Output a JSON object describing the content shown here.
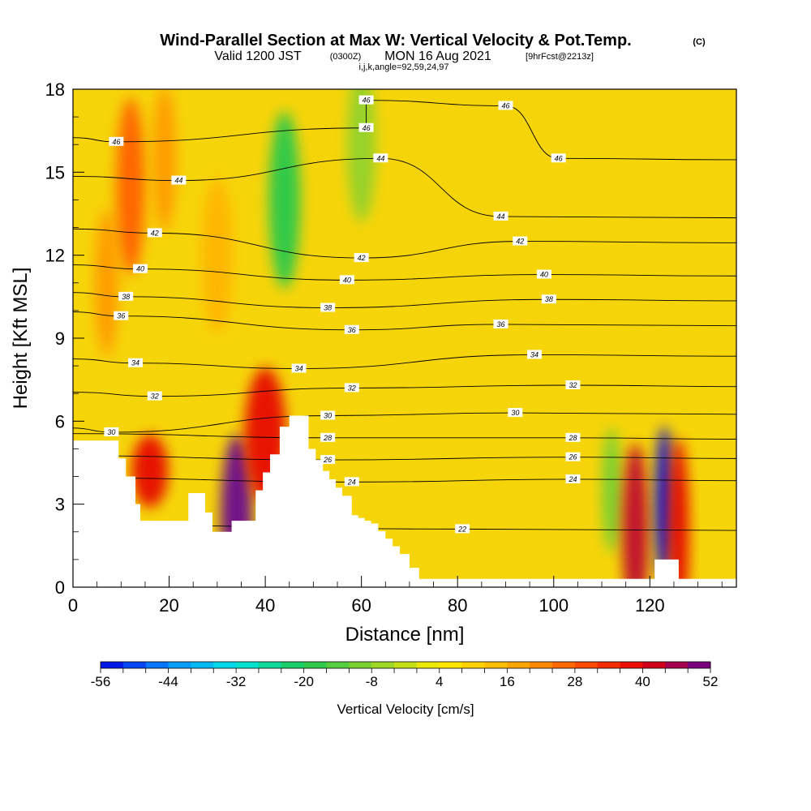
{
  "title": "Wind-Parallel Section at Max W: Vertical Velocity & Pot.Temp.",
  "title_mark": "(C)",
  "subtitle_valid": "Valid 1200 JST",
  "subtitle_utc": "(0300Z)",
  "subtitle_date": "MON 16 Aug 2021",
  "subtitle_fcst": "[9hrFcst@2213z]",
  "subtitle_indices": "i,j,k,angle=92,59,24,97",
  "chart_data": {
    "type": "heatmap",
    "xlabel": "Distance [nm]",
    "ylabel": "Height [Kft MSL]",
    "xlim": [
      0,
      138
    ],
    "ylim": [
      0,
      18
    ],
    "x_ticks": [
      0,
      20,
      40,
      60,
      80,
      100,
      120
    ],
    "y_ticks": [
      0,
      3,
      6,
      9,
      12,
      15,
      18
    ],
    "colorbar": {
      "label": "Vertical Velocity [cm/s]",
      "min": -56,
      "max": 52,
      "step": 4,
      "tick_labels": [
        -56,
        -44,
        -32,
        -20,
        -8,
        4,
        16,
        28,
        40,
        52
      ]
    },
    "terrain_kft": [
      [
        0,
        5.3
      ],
      [
        8,
        5.3
      ],
      [
        11,
        4.0
      ],
      [
        13,
        3.0
      ],
      [
        14,
        2.4
      ],
      [
        22,
        2.4
      ],
      [
        24,
        3.4
      ],
      [
        26,
        3.4
      ],
      [
        29,
        2.0
      ],
      [
        31,
        2.0
      ],
      [
        33,
        2.4
      ],
      [
        36,
        2.4
      ],
      [
        38,
        3.5
      ],
      [
        41,
        4.8
      ],
      [
        43,
        5.8
      ],
      [
        45,
        6.2
      ],
      [
        47,
        6.2
      ],
      [
        49,
        5.0
      ],
      [
        52,
        4.2
      ],
      [
        56,
        3.3
      ],
      [
        58,
        2.6
      ],
      [
        62,
        2.3
      ],
      [
        68,
        1.2
      ],
      [
        70,
        0.7
      ],
      [
        72,
        0.3
      ],
      [
        136,
        0.3
      ],
      [
        138,
        0.0
      ]
    ],
    "terrain_bump_kft": [
      [
        119,
        0
      ],
      [
        121,
        1.0
      ],
      [
        124,
        1.0
      ],
      [
        126,
        0
      ]
    ],
    "vv_features": [
      {
        "x": 16,
        "z": 4.2,
        "value": 40
      },
      {
        "x": 7,
        "z": 11.0,
        "value": 20
      },
      {
        "x": 12,
        "z": 14.5,
        "value": 28
      },
      {
        "x": 19,
        "z": 15.5,
        "value": 20
      },
      {
        "x": 30,
        "z": 12.0,
        "value": 16
      },
      {
        "x": 34,
        "z": 2.5,
        "value": 52
      },
      {
        "x": 40,
        "z": 5.5,
        "value": 40
      },
      {
        "x": 44,
        "z": 14.0,
        "value": -20
      },
      {
        "x": 60,
        "z": 16.0,
        "value": -8
      },
      {
        "x": 112,
        "z": 3.5,
        "value": -12
      },
      {
        "x": 117,
        "z": 2.0,
        "value": 44
      },
      {
        "x": 123,
        "z": 3.0,
        "value": -56
      },
      {
        "x": 126,
        "z": 2.0,
        "value": 40
      }
    ],
    "theta_contours": [
      {
        "label": 22,
        "label_x": 81,
        "label_z": 2.1
      },
      {
        "label": 24,
        "label_x": 58,
        "label_z": 3.8
      },
      {
        "label": 24,
        "label_x": 104,
        "label_z": 3.9
      },
      {
        "label": 26,
        "label_x": 53,
        "label_z": 4.6
      },
      {
        "label": 26,
        "label_x": 104,
        "label_z": 4.7
      },
      {
        "label": 28,
        "label_x": 53,
        "label_z": 5.4
      },
      {
        "label": 28,
        "label_x": 104,
        "label_z": 5.4
      },
      {
        "label": 30,
        "label_x": 8,
        "label_z": 5.6
      },
      {
        "label": 30,
        "label_x": 53,
        "label_z": 6.2
      },
      {
        "label": 30,
        "label_x": 92,
        "label_z": 6.3
      },
      {
        "label": 32,
        "label_x": 17,
        "label_z": 6.9
      },
      {
        "label": 32,
        "label_x": 58,
        "label_z": 7.2
      },
      {
        "label": 32,
        "label_x": 104,
        "label_z": 7.3
      },
      {
        "label": 34,
        "label_x": 13,
        "label_z": 8.1
      },
      {
        "label": 34,
        "label_x": 47,
        "label_z": 7.9
      },
      {
        "label": 34,
        "label_x": 96,
        "label_z": 8.4
      },
      {
        "label": 36,
        "label_x": 10,
        "label_z": 9.8
      },
      {
        "label": 36,
        "label_x": 58,
        "label_z": 9.3
      },
      {
        "label": 36,
        "label_x": 89,
        "label_z": 9.5
      },
      {
        "label": 38,
        "label_x": 11,
        "label_z": 10.5
      },
      {
        "label": 38,
        "label_x": 53,
        "label_z": 10.1
      },
      {
        "label": 38,
        "label_x": 99,
        "label_z": 10.4
      },
      {
        "label": 40,
        "label_x": 14,
        "label_z": 11.5
      },
      {
        "label": 40,
        "label_x": 57,
        "label_z": 11.1
      },
      {
        "label": 40,
        "label_x": 98,
        "label_z": 11.3
      },
      {
        "label": 42,
        "label_x": 17,
        "label_z": 12.8
      },
      {
        "label": 42,
        "label_x": 60,
        "label_z": 11.9
      },
      {
        "label": 42,
        "label_x": 93,
        "label_z": 12.5
      },
      {
        "label": 44,
        "label_x": 22,
        "label_z": 14.7
      },
      {
        "label": 44,
        "label_x": 64,
        "label_z": 15.5
      },
      {
        "label": 44,
        "label_x": 89,
        "label_z": 13.4
      },
      {
        "label": 46,
        "label_x": 9,
        "label_z": 16.1
      },
      {
        "label": 46,
        "label_x": 61,
        "label_z": 16.6
      },
      {
        "label": 46,
        "label_x": 101,
        "label_z": 15.5
      },
      {
        "label": 46,
        "label_x": 61,
        "label_z": 17.6
      },
      {
        "label": 46,
        "label_x": 90,
        "label_z": 17.4
      }
    ]
  }
}
